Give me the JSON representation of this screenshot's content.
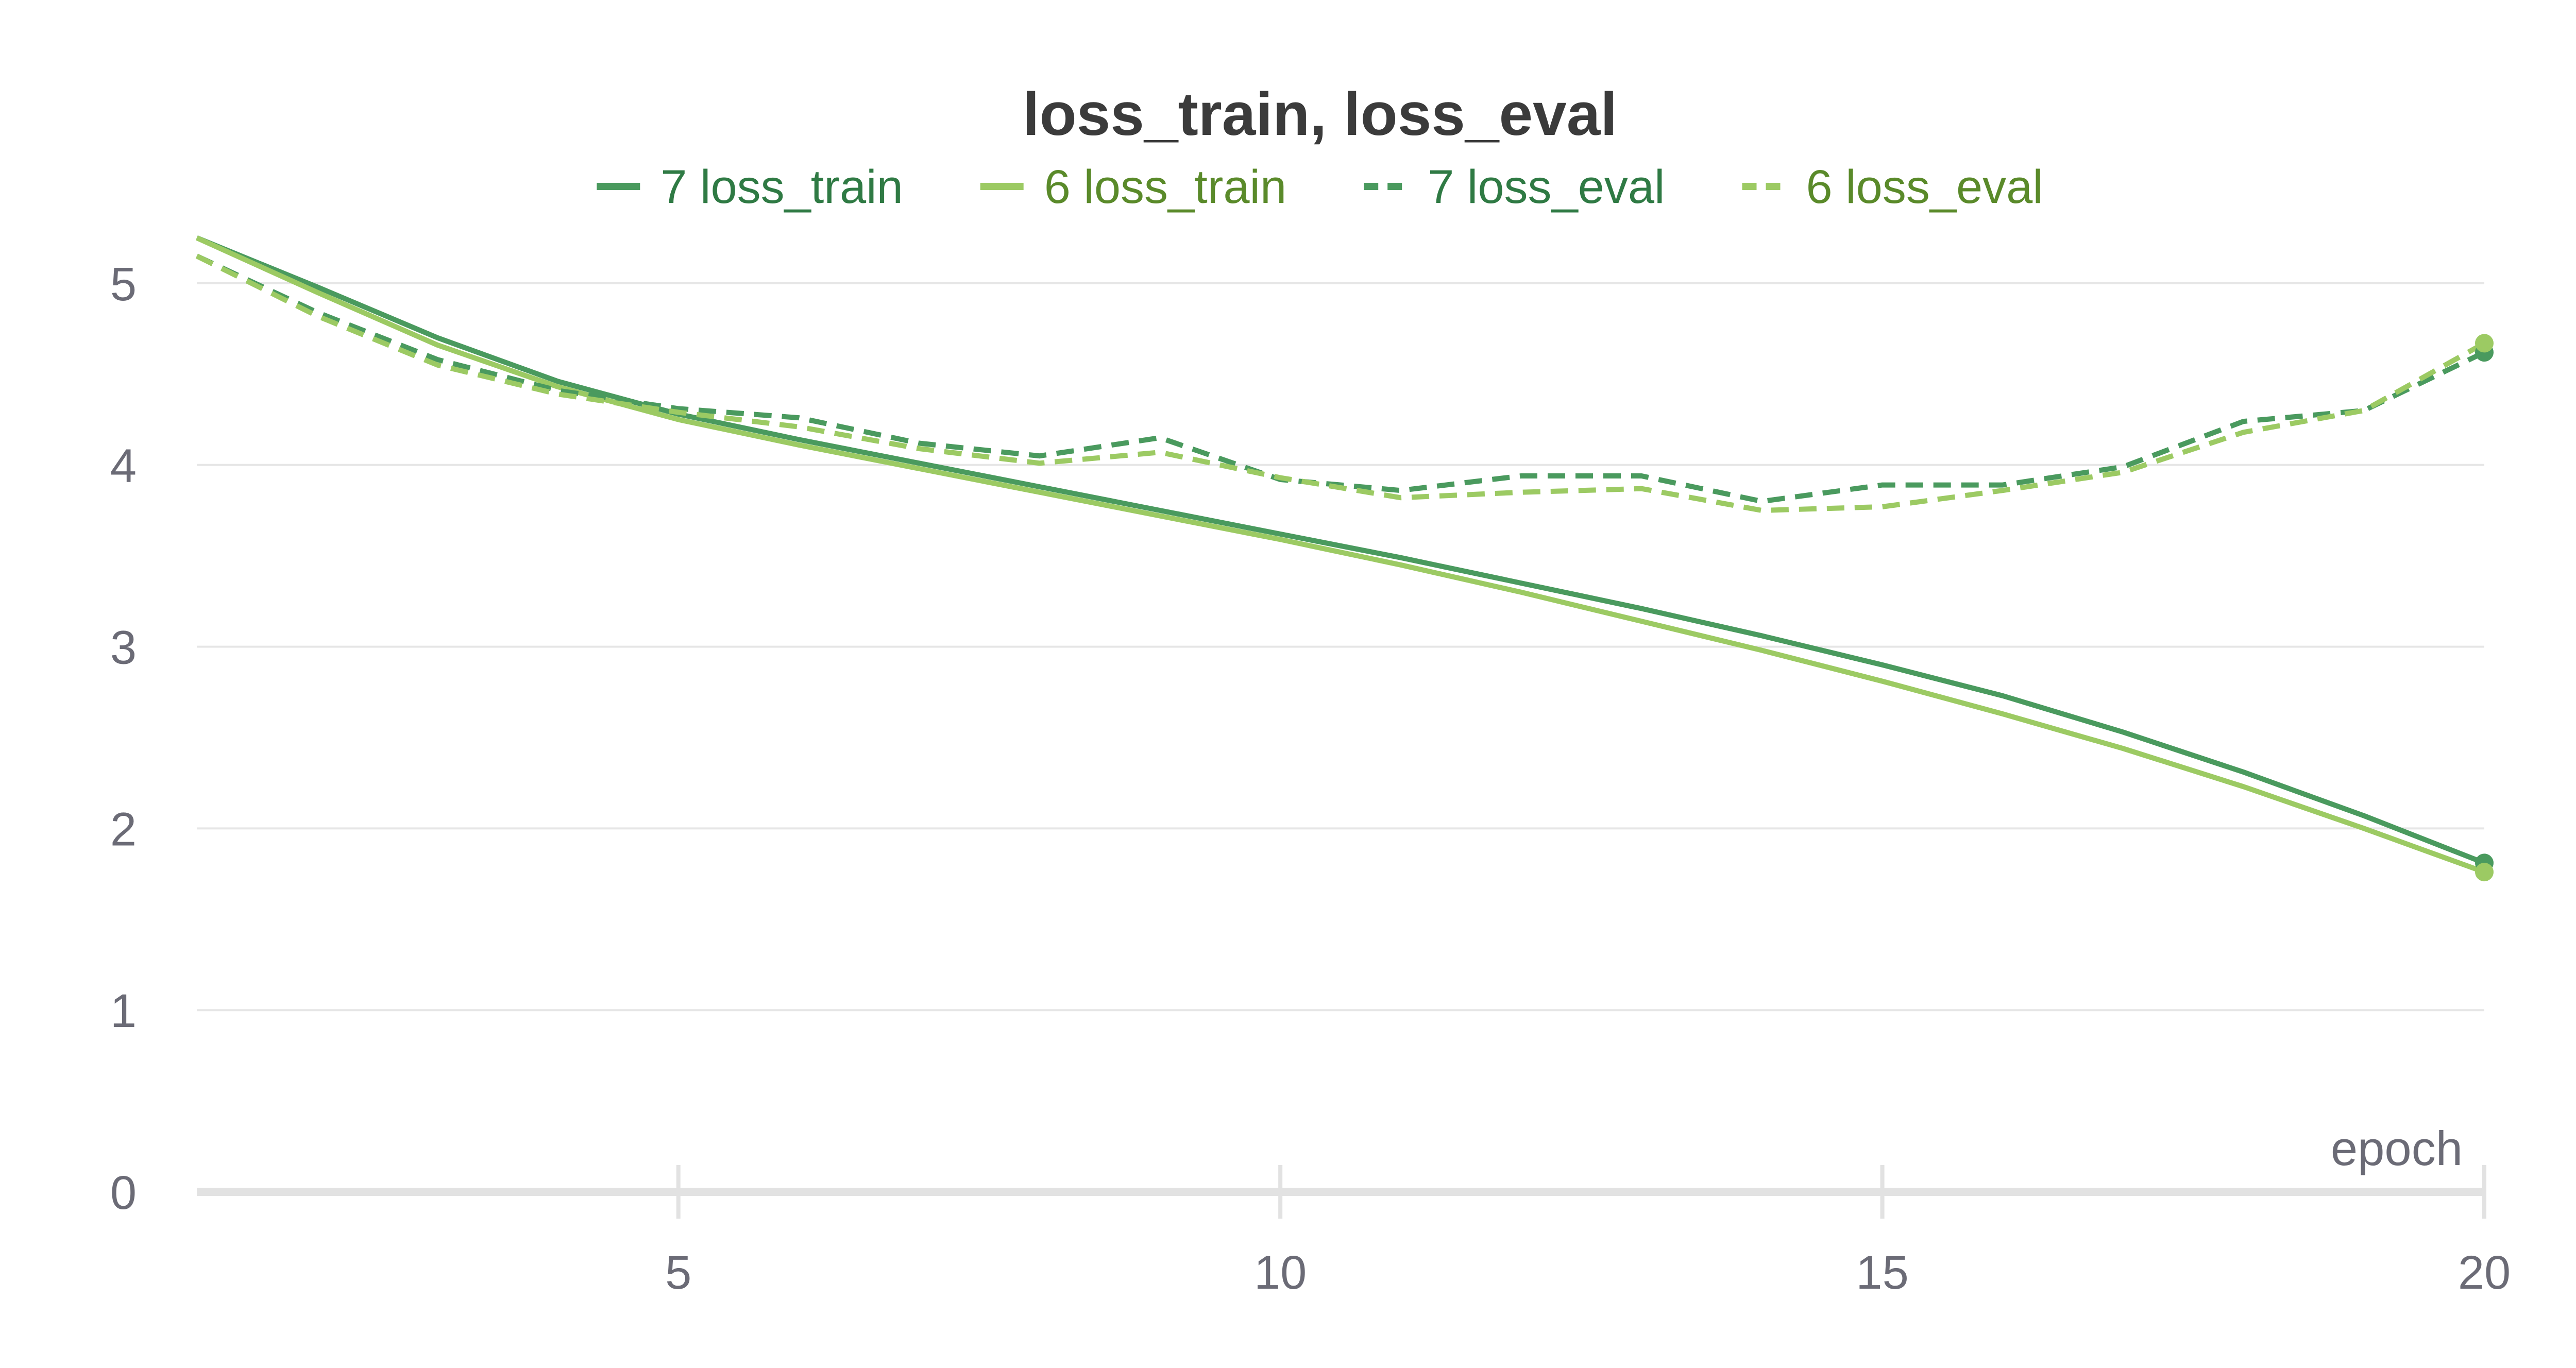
{
  "chart_data": {
    "type": "line",
    "title": "loss_train, loss_eval",
    "xlabel": "epoch",
    "ylabel": "",
    "xlim": [
      1,
      20
    ],
    "ylim": [
      0,
      5.5
    ],
    "x_ticks": [
      5,
      10,
      15,
      20
    ],
    "y_ticks": [
      0,
      1,
      2,
      3,
      4,
      5
    ],
    "grid": true,
    "legend_position": "top",
    "x": [
      1,
      2,
      3,
      4,
      5,
      6,
      7,
      8,
      9,
      10,
      11,
      12,
      13,
      14,
      15,
      16,
      17,
      18,
      19,
      20
    ],
    "series": [
      {
        "name": "7 loss_train",
        "color": "#4a9a5e",
        "dash": "solid",
        "values": [
          5.25,
          4.98,
          4.7,
          4.46,
          4.28,
          4.14,
          4.01,
          3.88,
          3.75,
          3.62,
          3.49,
          3.35,
          3.21,
          3.06,
          2.9,
          2.73,
          2.53,
          2.31,
          2.07,
          1.81
        ]
      },
      {
        "name": "6 loss_train",
        "color": "#9cca63",
        "dash": "solid",
        "values": [
          5.25,
          4.95,
          4.66,
          4.43,
          4.25,
          4.11,
          3.98,
          3.85,
          3.72,
          3.59,
          3.45,
          3.3,
          3.14,
          2.98,
          2.81,
          2.63,
          2.44,
          2.23,
          2.0,
          1.76
        ]
      },
      {
        "name": "7 loss_eval",
        "color": "#4a9a5e",
        "dash": "dashed",
        "values": [
          5.15,
          4.84,
          4.58,
          4.41,
          4.31,
          4.26,
          4.12,
          4.05,
          4.15,
          3.92,
          3.86,
          3.94,
          3.94,
          3.8,
          3.89,
          3.89,
          3.99,
          4.24,
          4.3,
          4.62
        ]
      },
      {
        "name": "6 loss_eval",
        "color": "#9cca63",
        "dash": "dashed",
        "values": [
          5.15,
          4.82,
          4.55,
          4.39,
          4.29,
          4.21,
          4.09,
          4.01,
          4.07,
          3.93,
          3.82,
          3.85,
          3.87,
          3.75,
          3.77,
          3.86,
          3.96,
          4.18,
          4.3,
          4.67
        ]
      }
    ]
  }
}
